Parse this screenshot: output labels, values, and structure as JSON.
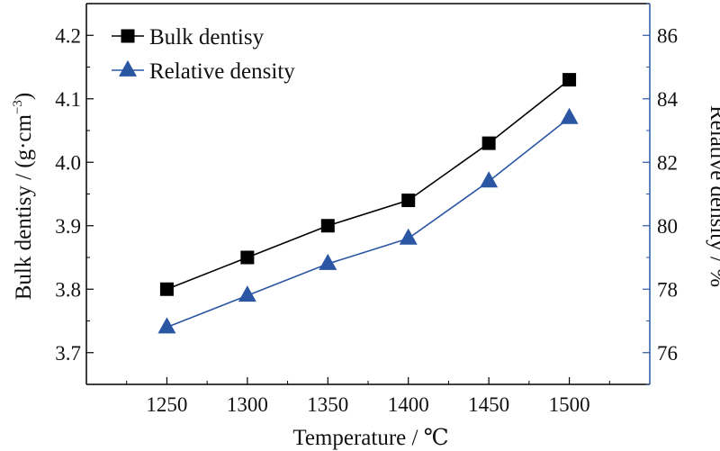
{
  "chart_data": {
    "type": "line",
    "x": [
      1250,
      1300,
      1350,
      1400,
      1450,
      1500
    ],
    "x_ticks": [
      "1250",
      "1300",
      "1350",
      "1400",
      "1450",
      "1500"
    ],
    "xlabel": "Temperature / ℃",
    "xlim": [
      1200,
      1550
    ],
    "ylabel_left": "Bulk dentisy / (g·cm",
    "ylabel_left_sup": "−3",
    "ylabel_left_close": ")",
    "ylim_left": [
      3.65,
      4.25
    ],
    "yticks_left": [
      "3.7",
      "3.8",
      "3.9",
      "4.0",
      "4.1",
      "4.2"
    ],
    "ylabel_right": "Relative density / %",
    "ylim_right": [
      75,
      87
    ],
    "yticks_right": [
      "76",
      "78",
      "80",
      "82",
      "84",
      "86"
    ],
    "grid": false,
    "legend_position": "top-left",
    "series": [
      {
        "name": "Bulk dentisy",
        "axis": "left",
        "marker": "square",
        "color": "#000000",
        "values": [
          3.8,
          3.85,
          3.9,
          3.94,
          4.03,
          4.13
        ]
      },
      {
        "name": "Relative density",
        "axis": "right",
        "marker": "triangle",
        "color": "#2a56a4",
        "values": [
          76.8,
          77.8,
          78.8,
          79.6,
          81.4,
          83.4
        ]
      }
    ]
  }
}
